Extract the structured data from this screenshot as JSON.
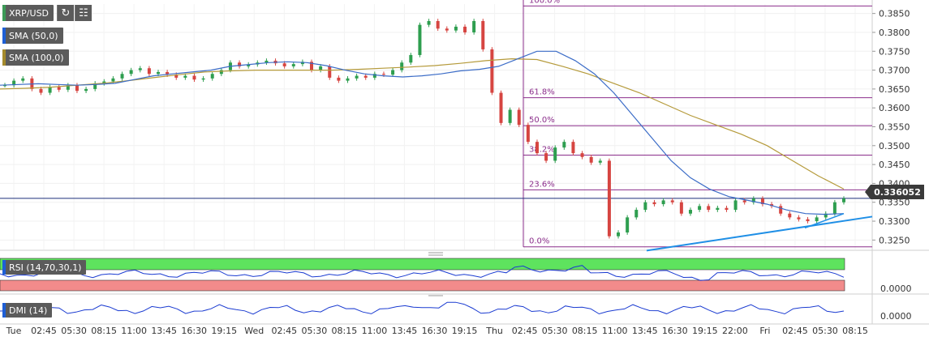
{
  "chart_data": {
    "type": "candlestick",
    "symbol": "XRP/USD",
    "indicators": [
      "SMA (50,0)",
      "SMA (100,0)"
    ],
    "price_axis": {
      "min": 0.3225,
      "max": 0.3875,
      "ticks": [
        "0.3850",
        "0.3800",
        "0.3750",
        "0.3700",
        "0.3650",
        "0.3600",
        "0.3550",
        "0.3500",
        "0.3450",
        "0.3400",
        "0.3350",
        "0.3300",
        "0.3250"
      ]
    },
    "last_price": "0.336052",
    "time_labels": [
      "Tue",
      "02:45",
      "05:30",
      "08:15",
      "11:00",
      "13:45",
      "16:30",
      "19:15",
      "Wed",
      "02:45",
      "05:30",
      "08:15",
      "11:00",
      "13:45",
      "16:30",
      "19:15",
      "Thu",
      "02:45",
      "05:30",
      "08:15",
      "11:00",
      "13:45",
      "16:30",
      "19:15",
      "22:00",
      "Fri",
      "02:45",
      "05:30",
      "08:15"
    ],
    "fibonacci": [
      {
        "label": "100.0%",
        "price": 0.387
      },
      {
        "label": "61.8%",
        "price": 0.3627
      },
      {
        "label": "50.0%",
        "price": 0.3553
      },
      {
        "label": "38.2%",
        "price": 0.3475
      },
      {
        "label": "23.6%",
        "price": 0.3383
      },
      {
        "label": "0.0%",
        "price": 0.3232
      }
    ],
    "trendlines": [
      {
        "from": {
          "price": 0.3222
        },
        "to": {
          "price": 0.3312
        }
      },
      {
        "from": {
          "price": 0.3282
        },
        "to": {
          "price": 0.332
        }
      }
    ],
    "close_path": [
      0.366,
      0.3672,
      0.3678,
      0.365,
      0.364,
      0.3655,
      0.3648,
      0.366,
      0.3645,
      0.365,
      0.3665,
      0.367,
      0.3678,
      0.369,
      0.37,
      0.3705,
      0.369,
      0.3695,
      0.3688,
      0.368,
      0.3685,
      0.3675,
      0.3678,
      0.369,
      0.37,
      0.372,
      0.371,
      0.3715,
      0.372,
      0.3725,
      0.3718,
      0.371,
      0.3716,
      0.3722,
      0.37,
      0.371,
      0.368,
      0.3672,
      0.3678,
      0.3685,
      0.368,
      0.369,
      0.3688,
      0.37,
      0.372,
      0.374,
      0.382,
      0.383,
      0.381,
      0.3805,
      0.3815,
      0.38,
      0.383,
      0.3755,
      0.364,
      0.356,
      0.3595,
      0.3555,
      0.351,
      0.348,
      0.346,
      0.3495,
      0.351,
      0.348,
      0.347,
      0.3455,
      0.346,
      0.326,
      0.327,
      0.331,
      0.333,
      0.335,
      0.3345,
      0.3355,
      0.335,
      0.332,
      0.333,
      0.334,
      0.333,
      0.3335,
      0.333,
      0.3355,
      0.335,
      0.336,
      0.3345,
      0.334,
      0.332,
      0.331,
      0.3305,
      0.33,
      0.331,
      0.332,
      0.335,
      0.336
    ],
    "sma50_path": [
      0.366,
      0.3662,
      0.3664,
      0.3662,
      0.366,
      0.3662,
      0.3665,
      0.3675,
      0.3685,
      0.369,
      0.3695,
      0.37,
      0.371,
      0.3715,
      0.372,
      0.3722,
      0.372,
      0.3712,
      0.37,
      0.369,
      0.3685,
      0.3682,
      0.3685,
      0.369,
      0.3698,
      0.3702,
      0.371,
      0.373,
      0.375,
      0.375,
      0.3725,
      0.369,
      0.364,
      0.358,
      0.352,
      0.346,
      0.3415,
      0.3385,
      0.3365,
      0.3355,
      0.3345,
      0.333,
      0.332,
      0.3318,
      0.332
    ],
    "sma100_path": [
      0.365,
      0.3652,
      0.3655,
      0.366,
      0.3665,
      0.3672,
      0.368,
      0.3688,
      0.3695,
      0.3698,
      0.37,
      0.37,
      0.37,
      0.37,
      0.3702,
      0.3705,
      0.3708,
      0.3712,
      0.3718,
      0.3725,
      0.373,
      0.3728,
      0.371,
      0.369,
      0.3665,
      0.364,
      0.361,
      0.358,
      0.3555,
      0.353,
      0.35,
      0.346,
      0.342,
      0.3385
    ],
    "rsi": {
      "label": "RSI (14,70,30,1)",
      "axis_tick": "0.0000"
    },
    "dmi": {
      "label": "DMI (14)",
      "axis_tick": "0.0000"
    }
  },
  "toolbar": {
    "refresh_icon": "refresh-icon",
    "bars_icon": "bars-icon"
  },
  "colors": {
    "up": "#2e9e4f",
    "down": "#d64541",
    "sma50": "#3b6cc7",
    "sma100": "#b59a3a",
    "fib": "#8b2e8b",
    "trend": "#1f8fe6",
    "rsi_over": "#5ee35e",
    "rsi_under": "#f28b8b",
    "rsi_line": "#1a3bd1",
    "dmi_line": "#1a3bd1",
    "badge_blue": "#1e5fd6",
    "badge_gold": "#a48a2c",
    "badge_green": "#3c9a57"
  }
}
